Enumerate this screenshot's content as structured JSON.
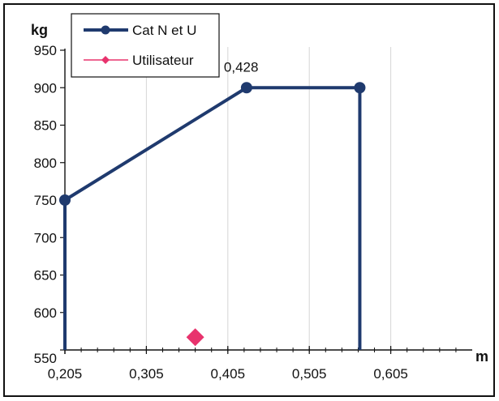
{
  "chart_data": {
    "type": "line",
    "xlabel": "m",
    "ylabel": "kg",
    "xlim": [
      0.205,
      0.705
    ],
    "ylim": [
      550,
      950
    ],
    "x_ticks": [
      0.205,
      0.305,
      0.405,
      0.505,
      0.605
    ],
    "x_tick_labels": [
      "0,205",
      "0,305",
      "0,405",
      "0,505",
      "0,605"
    ],
    "y_ticks": [
      550,
      600,
      650,
      700,
      750,
      800,
      850,
      900,
      950
    ],
    "y_tick_labels": [
      "550",
      "600",
      "650",
      "700",
      "750",
      "800",
      "850",
      "900",
      "950"
    ],
    "grid": "vertical",
    "legend_position": "top-left",
    "series": [
      {
        "name": "Cat N et U",
        "color": "#1f3a6e",
        "marker": "circle",
        "points": [
          {
            "x": 0.205,
            "y": 550
          },
          {
            "x": 0.205,
            "y": 750
          },
          {
            "x": 0.428,
            "y": 900
          },
          {
            "x": 0.567,
            "y": 900
          },
          {
            "x": 0.567,
            "y": 550
          }
        ],
        "marker_indices": [
          1,
          2,
          3
        ]
      },
      {
        "name": "Utilisateur",
        "color": "#e8336d",
        "marker": "diamond",
        "points": [
          {
            "x": 0.365,
            "y": 567
          }
        ],
        "marker_indices": [
          0
        ]
      }
    ],
    "annotations": [
      {
        "text": "0,428",
        "x": 0.428,
        "y": 900
      }
    ]
  }
}
